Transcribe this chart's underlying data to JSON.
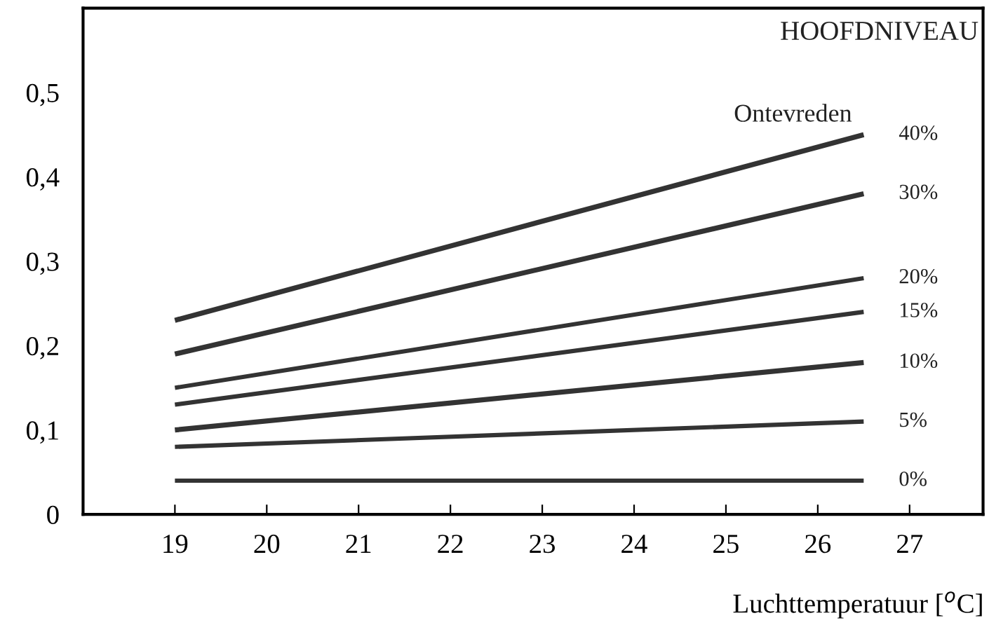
{
  "chart_data": {
    "type": "line",
    "x": [
      19,
      26.5
    ],
    "xlabel": "Luchttemperatuur [$^{o}$C]",
    "annotations": [
      "HOOFDNIVEAU",
      {
        "text": "Ontevreden",
        "x": 26.5,
        "y": 0.45
      }
    ],
    "series": [
      {
        "name": "40%",
        "color": "#333333",
        "values": [
          0.23,
          0.45
        ]
      },
      {
        "name": "30%",
        "color": "#333333",
        "values": [
          0.19,
          0.38
        ]
      },
      {
        "name": "20%",
        "color": "#333333",
        "values": [
          0.15,
          0.28
        ]
      },
      {
        "name": "15%",
        "color": "#333333",
        "values": [
          0.13,
          0.24
        ]
      },
      {
        "name": "10%",
        "color": "#333333",
        "values": [
          0.1,
          0.18
        ]
      },
      {
        "name": "5%",
        "color": "#333333",
        "values": [
          0.08,
          0.11
        ]
      },
      {
        "name": "0%",
        "color": "#333333",
        "values": [
          0.04,
          0.04
        ]
      }
    ],
    "xlim": [
      18,
      27.8
    ],
    "ylim": [
      0,
      0.6
    ],
    "xticks": [
      19,
      20,
      21,
      22,
      23,
      24,
      25,
      26,
      27
    ],
    "yticks": [
      0,
      {
        "value": 0.1,
        "label": "0,1"
      },
      {
        "value": 0.2,
        "label": "0,2"
      },
      {
        "value": 0.3,
        "label": "0,3"
      },
      {
        "value": 0.4,
        "label": "0,4"
      },
      {
        "value": 0.5,
        "label": "0,5"
      }
    ],
    "grid": false,
    "legend": false,
    "marker": "none",
    "line_style": "solid"
  }
}
